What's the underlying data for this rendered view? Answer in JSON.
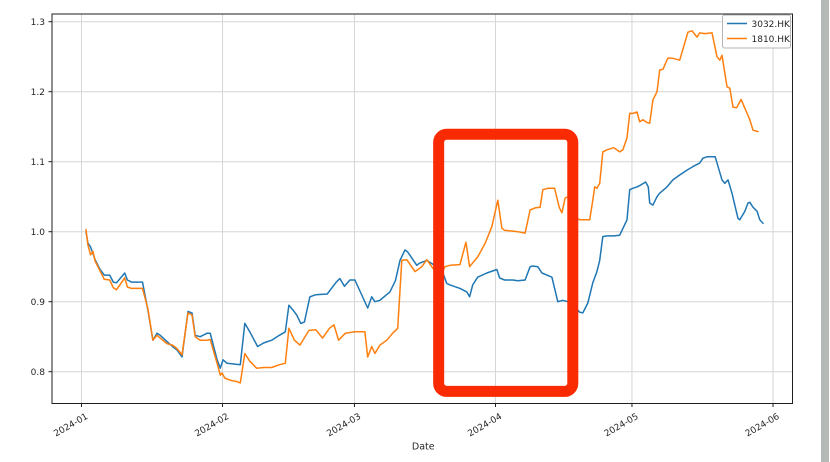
{
  "window": {
    "background": "#ffffff",
    "right_edge_strip_color": "#b6bab7"
  },
  "chart_data": {
    "type": "line",
    "title": "",
    "xlabel": "Date",
    "ylabel": "",
    "x_axis": {
      "unit": "days since 2024-01-01",
      "ticks": [
        {
          "label": "2024-01",
          "day": 0
        },
        {
          "label": "2024-02",
          "day": 31
        },
        {
          "label": "2024-03",
          "day": 60
        },
        {
          "label": "2024-04",
          "day": 91
        },
        {
          "label": "2024-05",
          "day": 121
        },
        {
          "label": "2024-06",
          "day": 152
        }
      ]
    },
    "y_axis": {
      "ticks": [
        0.8,
        0.9,
        1.0,
        1.1,
        1.2,
        1.3
      ],
      "tick_labels": [
        "0.8",
        "0.9",
        "1.0",
        "1.1",
        "1.2",
        "1.3"
      ],
      "lim": [
        0.755,
        1.311
      ]
    },
    "grid": true,
    "legend": {
      "position": "upper right",
      "entries": [
        "3032.HK",
        "1810.HK"
      ]
    },
    "series": [
      {
        "name": "3032.HK",
        "color": "#1f77b4",
        "points": [
          [
            1,
            1.0
          ],
          [
            1.4,
            0.984
          ],
          [
            2,
            0.978
          ],
          [
            3,
            0.96
          ],
          [
            4,
            0.947
          ],
          [
            5,
            0.938
          ],
          [
            6.2,
            0.938
          ],
          [
            7,
            0.928
          ],
          [
            7.7,
            0.927
          ],
          [
            9.5,
            0.941
          ],
          [
            10.1,
            0.931
          ],
          [
            11,
            0.928
          ],
          [
            13.4,
            0.928
          ],
          [
            14.6,
            0.888
          ],
          [
            15.7,
            0.845
          ],
          [
            16.6,
            0.855
          ],
          [
            17.3,
            0.852
          ],
          [
            18.8,
            0.843
          ],
          [
            20,
            0.836
          ],
          [
            21,
            0.831
          ],
          [
            22.1,
            0.821
          ],
          [
            23.4,
            0.886
          ],
          [
            24.3,
            0.884
          ],
          [
            25,
            0.852
          ],
          [
            26.1,
            0.85
          ],
          [
            27.6,
            0.855
          ],
          [
            28.3,
            0.855
          ],
          [
            29.8,
            0.817
          ],
          [
            30.5,
            0.805
          ],
          [
            31.1,
            0.817
          ],
          [
            32,
            0.812
          ],
          [
            33.5,
            0.811
          ],
          [
            34.9,
            0.81
          ],
          [
            35.9,
            0.869
          ],
          [
            37,
            0.857
          ],
          [
            38.7,
            0.836
          ],
          [
            40,
            0.841
          ],
          [
            41.8,
            0.845
          ],
          [
            43.5,
            0.852
          ],
          [
            44.8,
            0.857
          ],
          [
            45.6,
            0.895
          ],
          [
            46.5,
            0.888
          ],
          [
            47.3,
            0.881
          ],
          [
            48.2,
            0.869
          ],
          [
            49,
            0.871
          ],
          [
            50.2,
            0.907
          ],
          [
            51.5,
            0.91
          ],
          [
            54,
            0.911
          ],
          [
            56,
            0.928
          ],
          [
            56.8,
            0.933
          ],
          [
            57.8,
            0.922
          ],
          [
            59,
            0.931
          ],
          [
            60.1,
            0.931
          ],
          [
            62.9,
            0.891
          ],
          [
            63.8,
            0.907
          ],
          [
            64.5,
            0.9
          ],
          [
            65.6,
            0.902
          ],
          [
            67.8,
            0.914
          ],
          [
            69,
            0.93
          ],
          [
            70,
            0.959
          ],
          [
            71.1,
            0.974
          ],
          [
            71.7,
            0.971
          ],
          [
            73.7,
            0.952
          ],
          [
            74.3,
            0.955
          ],
          [
            75.9,
            0.959
          ],
          [
            78.1,
            0.95
          ],
          [
            78.8,
            0.952
          ],
          [
            80.3,
            0.926
          ],
          [
            81,
            0.924
          ],
          [
            83.2,
            0.919
          ],
          [
            84.7,
            0.914
          ],
          [
            85.3,
            0.907
          ],
          [
            86,
            0.924
          ],
          [
            87.1,
            0.935
          ],
          [
            89.1,
            0.941
          ],
          [
            91.3,
            0.946
          ],
          [
            91.9,
            0.934
          ],
          [
            93,
            0.931
          ],
          [
            94.8,
            0.931
          ],
          [
            95.9,
            0.93
          ],
          [
            97.5,
            0.931
          ],
          [
            98.6,
            0.95
          ],
          [
            99.2,
            0.951
          ],
          [
            100.3,
            0.95
          ],
          [
            101.2,
            0.941
          ],
          [
            102.3,
            0.938
          ],
          [
            103.4,
            0.935
          ],
          [
            104.7,
            0.9
          ],
          [
            105.8,
            0.902
          ],
          [
            106.9,
            0.9
          ],
          [
            107.8,
            0.898
          ],
          [
            109.5,
            0.885
          ],
          [
            110.2,
            0.884
          ],
          [
            111.3,
            0.898
          ],
          [
            112.4,
            0.927
          ],
          [
            113.3,
            0.943
          ],
          [
            113.9,
            0.959
          ],
          [
            114.6,
            0.993
          ],
          [
            115.5,
            0.994
          ],
          [
            117,
            0.994
          ],
          [
            118.3,
            0.995
          ],
          [
            119.9,
            1.017
          ],
          [
            120.5,
            1.06
          ],
          [
            121.2,
            1.062
          ],
          [
            122.1,
            1.064
          ],
          [
            123,
            1.067
          ],
          [
            124,
            1.071
          ],
          [
            124.6,
            1.064
          ],
          [
            124.9,
            1.041
          ],
          [
            125.6,
            1.038
          ],
          [
            126.5,
            1.05
          ],
          [
            127.1,
            1.055
          ],
          [
            128.7,
            1.064
          ],
          [
            130,
            1.074
          ],
          [
            131.5,
            1.081
          ],
          [
            133.1,
            1.088
          ],
          [
            134.4,
            1.093
          ],
          [
            135.9,
            1.098
          ],
          [
            136.6,
            1.105
          ],
          [
            137.5,
            1.107
          ],
          [
            139.3,
            1.107
          ],
          [
            140.8,
            1.074
          ],
          [
            141.4,
            1.069
          ],
          [
            142.1,
            1.074
          ],
          [
            143,
            1.055
          ],
          [
            143.6,
            1.038
          ],
          [
            144.3,
            1.019
          ],
          [
            144.7,
            1.017
          ],
          [
            145.8,
            1.029
          ],
          [
            146.5,
            1.041
          ],
          [
            146.9,
            1.042
          ],
          [
            147.6,
            1.035
          ],
          [
            148.5,
            1.029
          ],
          [
            149.1,
            1.017
          ],
          [
            149.8,
            1.012
          ]
        ]
      },
      {
        "name": "1810.HK",
        "color": "#ff7f0e",
        "points": [
          [
            1,
            1.003
          ],
          [
            1.4,
            0.981
          ],
          [
            2,
            0.967
          ],
          [
            2.5,
            0.972
          ],
          [
            3,
            0.958
          ],
          [
            4,
            0.945
          ],
          [
            5,
            0.932
          ],
          [
            6.2,
            0.931
          ],
          [
            7,
            0.92
          ],
          [
            7.7,
            0.917
          ],
          [
            9.5,
            0.934
          ],
          [
            10.1,
            0.921
          ],
          [
            11,
            0.919
          ],
          [
            13.4,
            0.919
          ],
          [
            14.6,
            0.89
          ],
          [
            15.7,
            0.845
          ],
          [
            16.6,
            0.852
          ],
          [
            17.3,
            0.848
          ],
          [
            18.8,
            0.84
          ],
          [
            20,
            0.838
          ],
          [
            21,
            0.833
          ],
          [
            22.1,
            0.824
          ],
          [
            23.4,
            0.884
          ],
          [
            24.3,
            0.881
          ],
          [
            25,
            0.85
          ],
          [
            26.1,
            0.845
          ],
          [
            27.6,
            0.845
          ],
          [
            28.3,
            0.846
          ],
          [
            29.8,
            0.812
          ],
          [
            30.5,
            0.795
          ],
          [
            30.9,
            0.798
          ],
          [
            31.5,
            0.791
          ],
          [
            32.6,
            0.788
          ],
          [
            34.1,
            0.786
          ],
          [
            34.9,
            0.784
          ],
          [
            35.9,
            0.826
          ],
          [
            37,
            0.815
          ],
          [
            38.5,
            0.805
          ],
          [
            40,
            0.806
          ],
          [
            41.8,
            0.806
          ],
          [
            43.5,
            0.81
          ],
          [
            44.8,
            0.812
          ],
          [
            45.6,
            0.862
          ],
          [
            46.8,
            0.845
          ],
          [
            48,
            0.838
          ],
          [
            50,
            0.859
          ],
          [
            51.5,
            0.86
          ],
          [
            53,
            0.848
          ],
          [
            54.5,
            0.862
          ],
          [
            55.5,
            0.867
          ],
          [
            56.5,
            0.845
          ],
          [
            58,
            0.855
          ],
          [
            60.1,
            0.857
          ],
          [
            62.3,
            0.857
          ],
          [
            62.9,
            0.821
          ],
          [
            63.8,
            0.836
          ],
          [
            64.5,
            0.826
          ],
          [
            65.6,
            0.838
          ],
          [
            67.1,
            0.845
          ],
          [
            68.4,
            0.855
          ],
          [
            69.5,
            0.862
          ],
          [
            70.4,
            0.959
          ],
          [
            71.5,
            0.96
          ],
          [
            73.3,
            0.943
          ],
          [
            74.8,
            0.95
          ],
          [
            75.9,
            0.96
          ],
          [
            78.1,
            0.94
          ],
          [
            78.8,
            0.936
          ],
          [
            79.9,
            0.95
          ],
          [
            81,
            0.952
          ],
          [
            83.2,
            0.953
          ],
          [
            84.5,
            0.985
          ],
          [
            85.3,
            0.95
          ],
          [
            87.1,
            0.964
          ],
          [
            88.7,
            0.983
          ],
          [
            90.2,
            1.007
          ],
          [
            91.5,
            1.045
          ],
          [
            92.4,
            1.005
          ],
          [
            93,
            1.002
          ],
          [
            94.6,
            1.001
          ],
          [
            95.9,
            1.0
          ],
          [
            97.5,
            0.998
          ],
          [
            98.6,
            1.031
          ],
          [
            99.7,
            1.034
          ],
          [
            100.8,
            1.035
          ],
          [
            101.4,
            1.06
          ],
          [
            102.5,
            1.062
          ],
          [
            104,
            1.062
          ],
          [
            105,
            1.035
          ],
          [
            105.6,
            1.027
          ],
          [
            106.3,
            1.048
          ],
          [
            107,
            1.05
          ],
          [
            108,
            1.024
          ],
          [
            109.5,
            1.017
          ],
          [
            111.7,
            1.017
          ],
          [
            112.4,
            1.045
          ],
          [
            112.8,
            1.064
          ],
          [
            113.3,
            1.062
          ],
          [
            113.9,
            1.069
          ],
          [
            114.6,
            1.114
          ],
          [
            115.5,
            1.117
          ],
          [
            117,
            1.12
          ],
          [
            118.3,
            1.114
          ],
          [
            119,
            1.117
          ],
          [
            119.9,
            1.134
          ],
          [
            120.5,
            1.169
          ],
          [
            121.2,
            1.169
          ],
          [
            122.1,
            1.171
          ],
          [
            122.7,
            1.157
          ],
          [
            123.4,
            1.16
          ],
          [
            124.3,
            1.156
          ],
          [
            124.9,
            1.155
          ],
          [
            125.6,
            1.188
          ],
          [
            126.5,
            1.2
          ],
          [
            127.1,
            1.231
          ],
          [
            127.8,
            1.232
          ],
          [
            128.9,
            1.248
          ],
          [
            129.8,
            1.248
          ],
          [
            130.4,
            1.247
          ],
          [
            131.5,
            1.245
          ],
          [
            133.3,
            1.285
          ],
          [
            134.2,
            1.287
          ],
          [
            135.3,
            1.278
          ],
          [
            135.9,
            1.284
          ],
          [
            137,
            1.283
          ],
          [
            138.6,
            1.284
          ],
          [
            139.7,
            1.25
          ],
          [
            140.3,
            1.245
          ],
          [
            140.8,
            1.252
          ],
          [
            141.9,
            1.207
          ],
          [
            142.5,
            1.205
          ],
          [
            143.2,
            1.178
          ],
          [
            144,
            1.177
          ],
          [
            145,
            1.189
          ],
          [
            146.9,
            1.16
          ],
          [
            147.6,
            1.145
          ],
          [
            148.7,
            1.143
          ]
        ]
      }
    ],
    "annotation_box": {
      "shape": "rounded-rectangle",
      "color": "#fa2a02",
      "stroke_px": 11,
      "corner_radius_px": 8,
      "x_days": [
        77.3,
        109.2
      ],
      "y_values": [
        1.147,
        0.764
      ]
    }
  }
}
